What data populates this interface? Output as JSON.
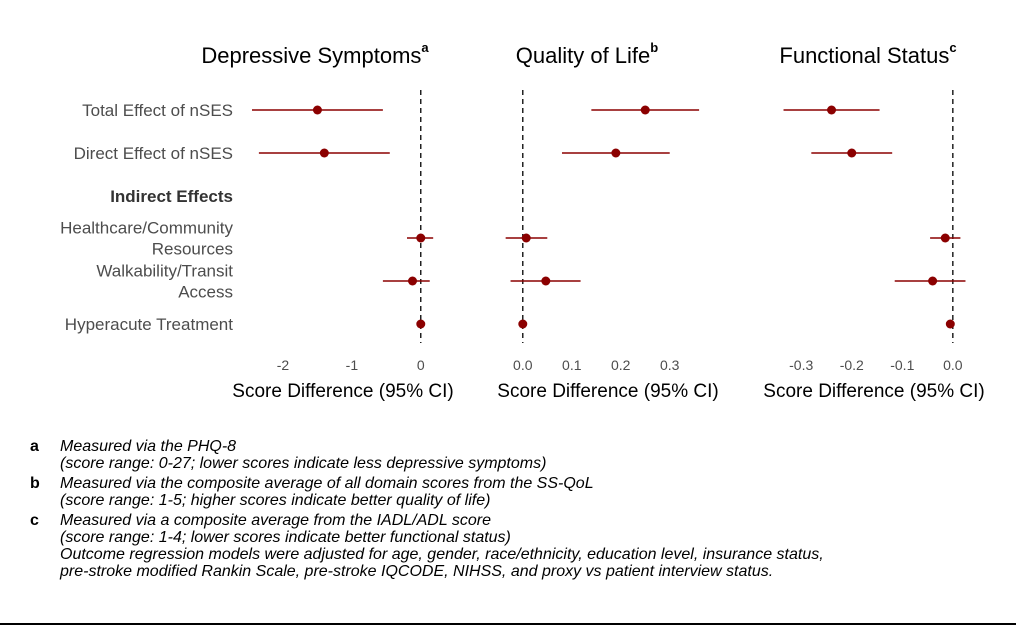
{
  "chart_data": {
    "type": "forest",
    "row_labels": [
      {
        "lines": [
          "Total Effect of nSES"
        ],
        "bold": false
      },
      {
        "lines": [
          "Direct Effect of nSES"
        ],
        "bold": false
      },
      {
        "lines": [
          "Indirect Effects"
        ],
        "bold": true
      },
      {
        "lines": [
          "Healthcare/Community",
          "Resources"
        ],
        "bold": false
      },
      {
        "lines": [
          "Walkability/Transit",
          "Access"
        ],
        "bold": false
      },
      {
        "lines": [
          "Hyperacute Treatment"
        ],
        "bold": false
      }
    ],
    "xlabel": "Score Difference (95% CI)",
    "reference_line": 0,
    "point_color": "#8B0000",
    "panels": [
      {
        "title": "Depressive Symptoms",
        "sup": "a",
        "xlim": [
          -2.45,
          0.25
        ],
        "ticks": [
          -2,
          -1,
          0
        ],
        "tick_labels": [
          "-2",
          "-1",
          "0"
        ],
        "points": [
          {
            "row": 0,
            "est": -1.5,
            "lo": -2.45,
            "hi": -0.55
          },
          {
            "row": 1,
            "est": -1.4,
            "lo": -2.35,
            "hi": -0.45
          },
          {
            "row": 3,
            "est": 0.0,
            "lo": -0.2,
            "hi": 0.18
          },
          {
            "row": 4,
            "est": -0.12,
            "lo": -0.55,
            "hi": 0.13
          },
          {
            "row": 5,
            "est": 0.0,
            "lo": -0.01,
            "hi": 0.01
          }
        ]
      },
      {
        "title": "Quality of Life",
        "sup": "b",
        "xlim": [
          -0.02,
          0.37
        ],
        "ticks": [
          0,
          0.1,
          0.2,
          0.3
        ],
        "tick_labels": [
          "0.0",
          "0.1",
          "0.2",
          "0.3"
        ],
        "points": [
          {
            "row": 0,
            "est": 0.25,
            "lo": 0.14,
            "hi": 0.36
          },
          {
            "row": 1,
            "est": 0.19,
            "lo": 0.08,
            "hi": 0.3
          },
          {
            "row": 3,
            "est": 0.007,
            "lo": -0.035,
            "hi": 0.05
          },
          {
            "row": 4,
            "est": 0.047,
            "lo": -0.025,
            "hi": 0.118
          },
          {
            "row": 5,
            "est": 0.0,
            "lo": -0.002,
            "hi": 0.002
          }
        ]
      },
      {
        "title": "Functional Status",
        "sup": "c",
        "xlim": [
          -0.34,
          0.03
        ],
        "ticks": [
          -0.3,
          -0.2,
          -0.1,
          0
        ],
        "tick_labels": [
          "-0.3",
          "-0.2",
          "-0.1",
          "0.0"
        ],
        "points": [
          {
            "row": 0,
            "est": -0.24,
            "lo": -0.335,
            "hi": -0.145
          },
          {
            "row": 1,
            "est": -0.2,
            "lo": -0.28,
            "hi": -0.12
          },
          {
            "row": 3,
            "est": -0.015,
            "lo": -0.045,
            "hi": 0.015
          },
          {
            "row": 4,
            "est": -0.04,
            "lo": -0.115,
            "hi": 0.025
          },
          {
            "row": 5,
            "est": -0.005,
            "lo": -0.008,
            "hi": -0.002
          }
        ]
      }
    ]
  },
  "footnotes": [
    {
      "key": "a",
      "lines": [
        "Measured via the PHQ-8",
        "(score range: 0-27; lower scores indicate less depressive symptoms)"
      ]
    },
    {
      "key": "b",
      "lines": [
        "Measured via the composite average of all domain scores from the SS-QoL",
        "(score range: 1-5; higher scores indicate better quality of life)"
      ]
    },
    {
      "key": "c",
      "lines": [
        "Measured via a composite average from the IADL/ADL score",
        "(score range: 1-4; lower scores indicate better functional status)"
      ]
    },
    {
      "key": "",
      "lines": [
        "Outcome regression models were adjusted for age, gender, race/ethnicity, education level, insurance status,",
        "pre-stroke modified Rankin Scale, pre-stroke IQCODE, NIHSS, and proxy vs patient interview status."
      ]
    }
  ]
}
